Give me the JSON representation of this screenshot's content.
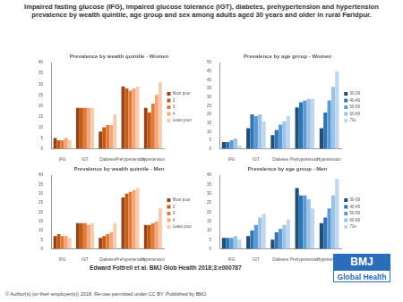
{
  "title": "Impaired fasting glucose (IFG), impaired glucose tolerance (IGT), diabetes, prehypertension and hypertension prevalence by wealth quintile, age group and sex among adults aged 30 years and older in rural Faridpur.",
  "chart_data": [
    {
      "type": "bar",
      "title": "Prevalence by wealth quintile - Women",
      "categories": [
        "IFG",
        "IGT",
        "Diabetes",
        "Prehypertension",
        "Hypertension"
      ],
      "series": [
        {
          "name": "Most poor",
          "color": "#9c4115",
          "values": [
            5,
            19,
            8,
            29,
            19
          ]
        },
        {
          "name": "2",
          "color": "#c55a11",
          "values": [
            4,
            19,
            10,
            28,
            17
          ]
        },
        {
          "name": "3",
          "color": "#e07b39",
          "values": [
            4,
            19,
            11,
            27,
            21
          ]
        },
        {
          "name": "4",
          "color": "#f4a57a",
          "values": [
            5,
            19,
            11,
            28,
            25
          ]
        },
        {
          "name": "Least poor",
          "color": "#f8cbad",
          "values": [
            4,
            19,
            16,
            29,
            31
          ]
        }
      ],
      "ylim": [
        0,
        40
      ],
      "yticks": [
        0,
        5,
        10,
        15,
        20,
        25,
        30,
        35,
        40
      ],
      "grid": false,
      "legend": "right"
    },
    {
      "type": "bar",
      "title": "Prevalence by age group - Women",
      "categories": [
        "IFG",
        "IGT",
        "Diabetes",
        "Prehypertension",
        "Hypertension"
      ],
      "series": [
        {
          "name": "30-39",
          "color": "#1f4e79",
          "values": [
            4,
            12,
            8,
            24,
            12
          ]
        },
        {
          "name": "40-49",
          "color": "#2e75b6",
          "values": [
            4,
            20,
            11,
            27,
            21
          ]
        },
        {
          "name": "50-59",
          "color": "#5b9bd5",
          "values": [
            5,
            19,
            14,
            28,
            28
          ]
        },
        {
          "name": "60-69",
          "color": "#9dc3e6",
          "values": [
            6,
            20,
            16,
            29,
            36
          ]
        },
        {
          "name": "70+",
          "color": "#bdd7ee",
          "values": [
            2,
            16,
            19,
            29,
            45
          ]
        }
      ],
      "ylim": [
        0,
        50
      ],
      "yticks": [
        0,
        5,
        10,
        15,
        20,
        25,
        30,
        35,
        40,
        45,
        50
      ],
      "grid": false,
      "legend": "right"
    },
    {
      "type": "bar",
      "title": "Prevalence by wealth quintile - Men",
      "categories": [
        "IFG",
        "IGT",
        "Diabetes",
        "Prehypertension",
        "Hypertension"
      ],
      "series": [
        {
          "name": "Most poor",
          "color": "#9c4115",
          "values": [
            7,
            14,
            6,
            28,
            13
          ]
        },
        {
          "name": "2",
          "color": "#c55a11",
          "values": [
            8,
            14,
            7,
            30,
            13
          ]
        },
        {
          "name": "3",
          "color": "#e07b39",
          "values": [
            7,
            14,
            8,
            31,
            14
          ]
        },
        {
          "name": "4",
          "color": "#f4a57a",
          "values": [
            7,
            13,
            9,
            32,
            15
          ]
        },
        {
          "name": "Least poor",
          "color": "#f8cbad",
          "values": [
            6,
            14,
            14,
            33,
            22
          ]
        }
      ],
      "ylim": [
        0,
        40
      ],
      "yticks": [
        0,
        5,
        10,
        15,
        20,
        25,
        30,
        35,
        40
      ],
      "grid": false,
      "legend": "right"
    },
    {
      "type": "bar",
      "title": "Prevalence by age group - Men",
      "categories": [
        "IFG",
        "IGT",
        "Diabetes",
        "Prehypertension",
        "Hypertension"
      ],
      "series": [
        {
          "name": "30-39",
          "color": "#1f4e79",
          "values": [
            6,
            7,
            5,
            33,
            14
          ]
        },
        {
          "name": "40-49",
          "color": "#2e75b6",
          "values": [
            6,
            10,
            9,
            29,
            17
          ]
        },
        {
          "name": "50-59",
          "color": "#5b9bd5",
          "values": [
            6,
            13,
            11,
            29,
            22
          ]
        },
        {
          "name": "60-69",
          "color": "#9dc3e6",
          "values": [
            7,
            17,
            13,
            27,
            29
          ]
        },
        {
          "name": "70+",
          "color": "#bdd7ee",
          "values": [
            5,
            19,
            16,
            22,
            38
          ]
        }
      ],
      "ylim": [
        0,
        40
      ],
      "yticks": [
        0,
        5,
        10,
        15,
        20,
        25,
        30,
        35,
        40
      ],
      "grid": false,
      "legend": "right"
    }
  ],
  "citation": "Edward Fottrell et al. BMJ Glob Health 2018;3:e000787",
  "logo": [
    "BMJ",
    "Global Health"
  ],
  "footer": "© Author(s) (or their employer(s)) 2018. Re-use permitted under CC BY. Published by BMJ."
}
